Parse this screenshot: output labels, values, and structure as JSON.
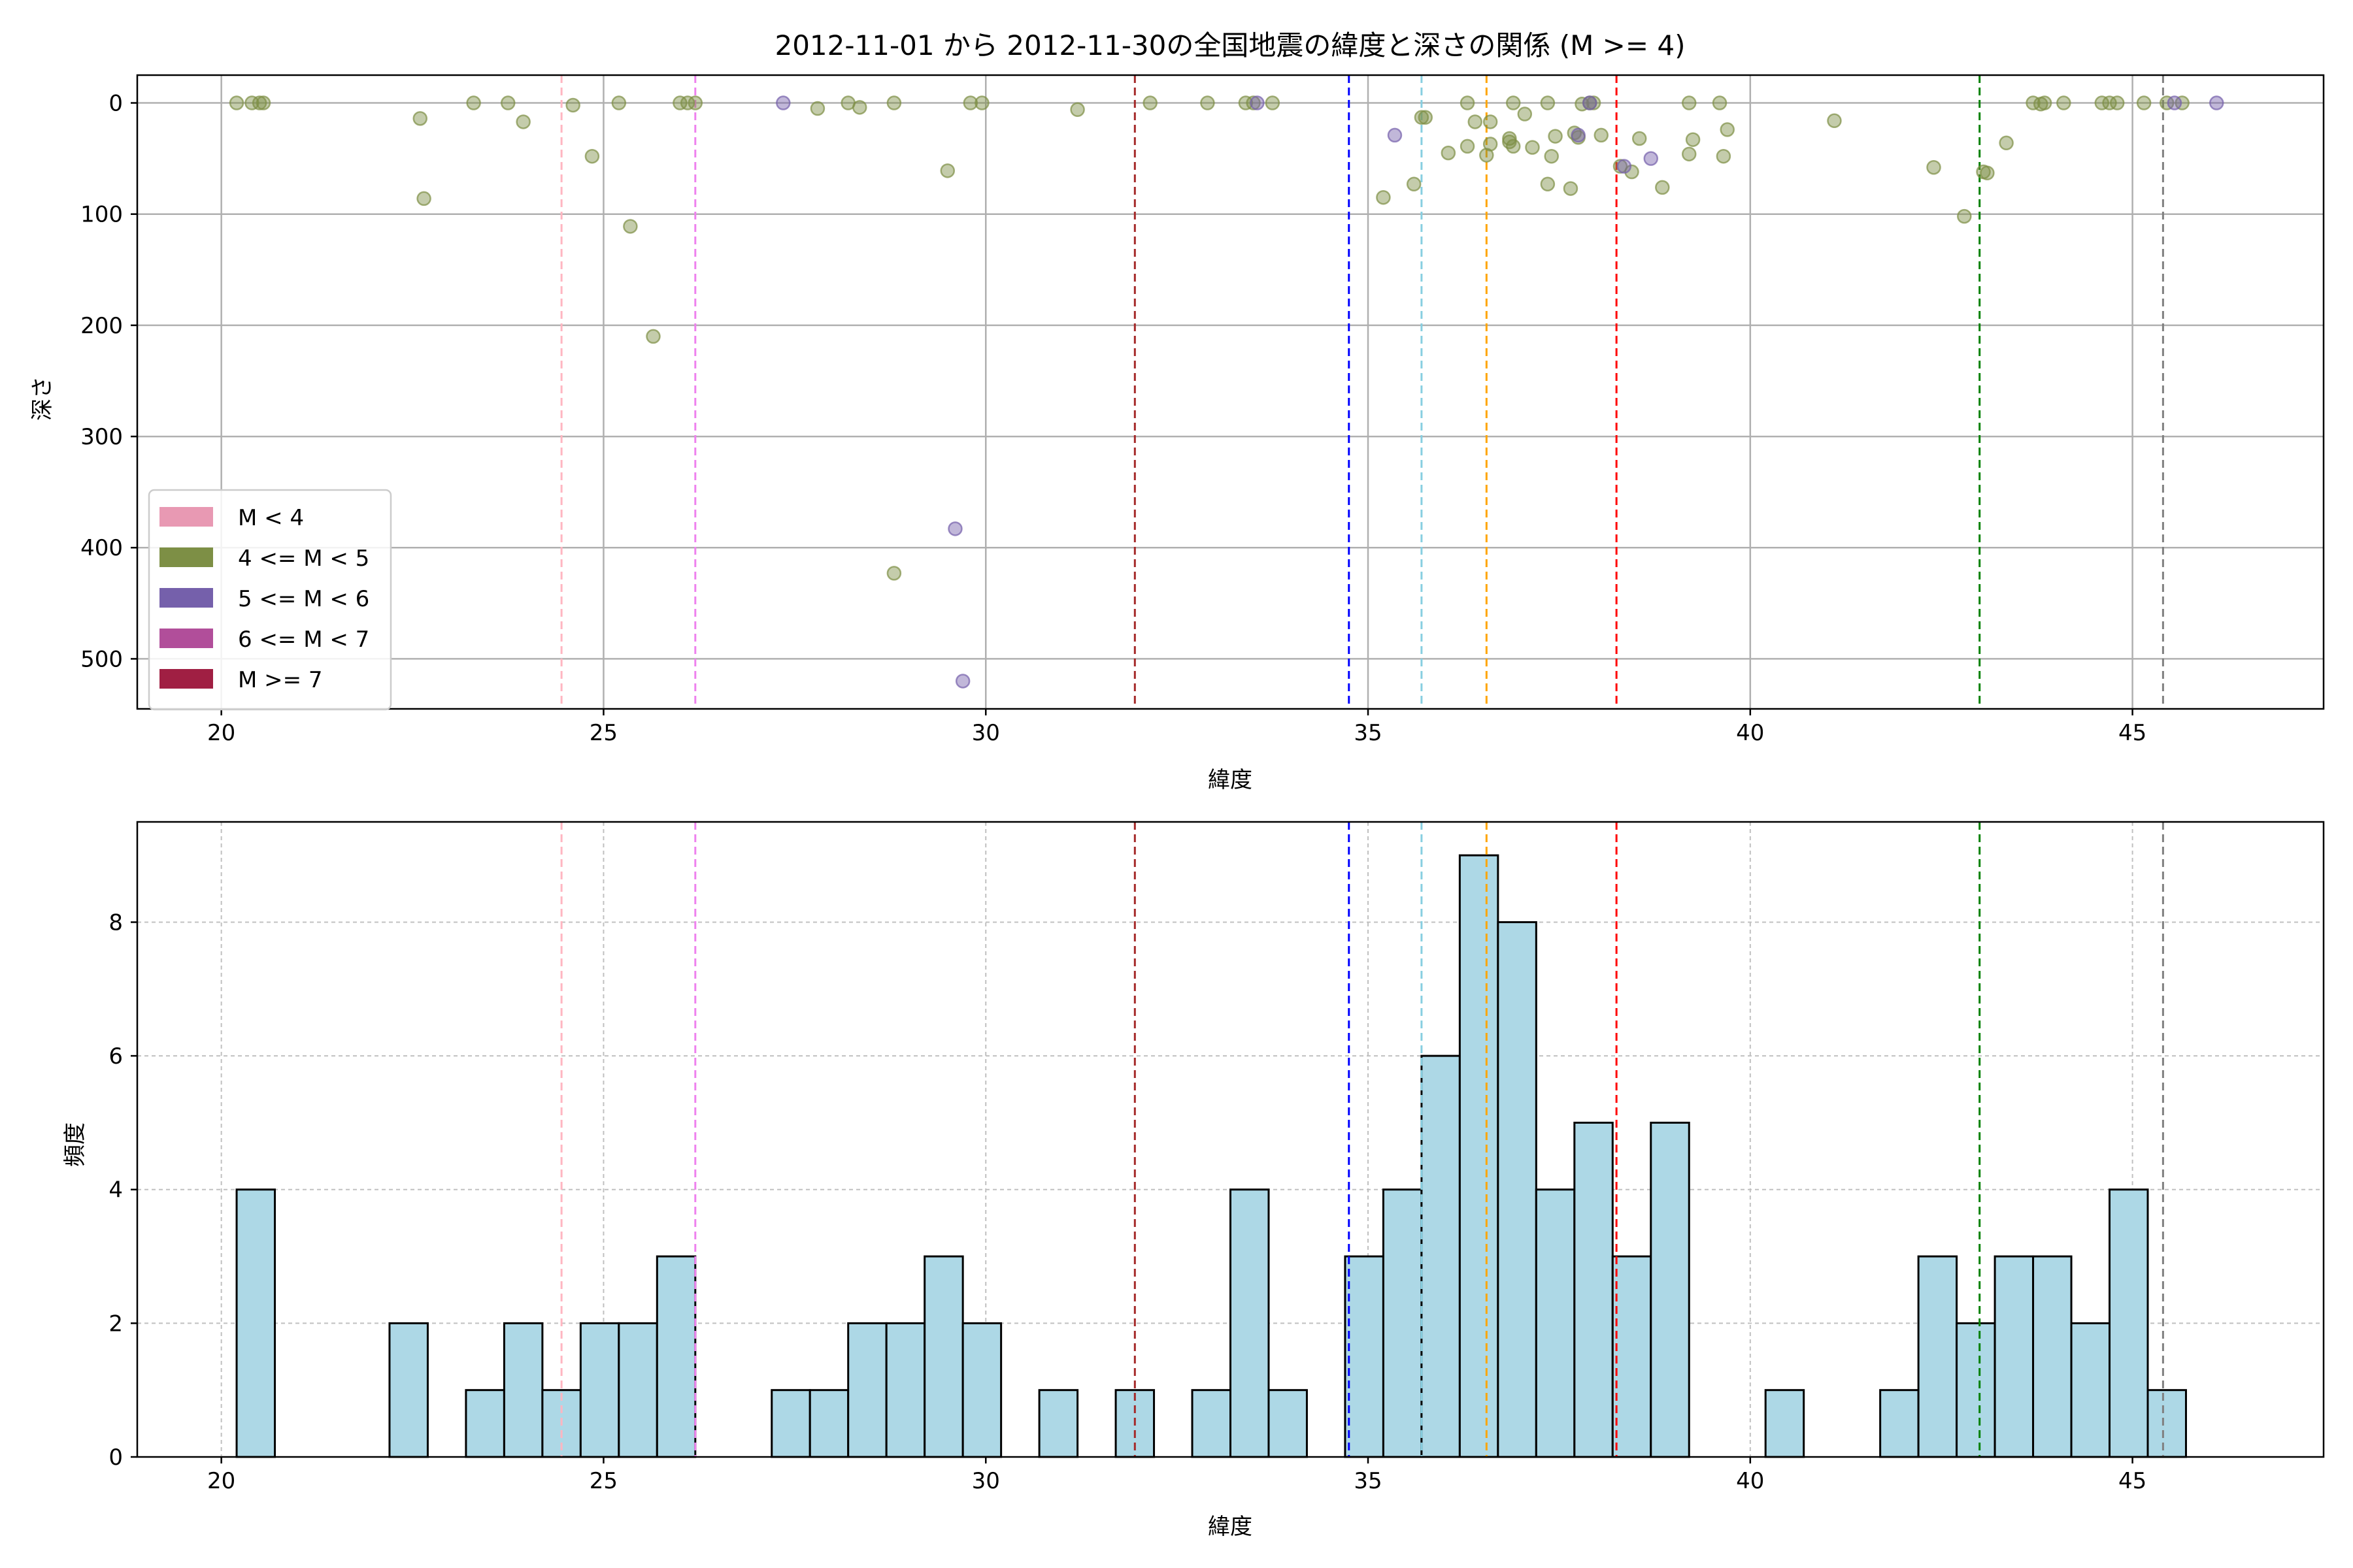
{
  "chart_title": "2012-11-01 から 2012-11-30の全国地震の緯度と深さの関係 (M >= 4)",
  "chart_data": [
    {
      "type": "scatter",
      "xlabel": "緯度",
      "ylabel": "深さ",
      "xlim": [
        18.9,
        47.5
      ],
      "ylim": [
        545,
        -25
      ],
      "y_inverted": true,
      "xticks": [
        20,
        25,
        30,
        35,
        40,
        45
      ],
      "yticks": [
        0,
        100,
        200,
        300,
        400,
        500
      ],
      "grid": true,
      "legend": {
        "position": "lower-left",
        "entries": [
          {
            "label": "M < 4",
            "color": "#e899b3"
          },
          {
            "label": "4 <= M < 5",
            "color": "#7d8f45"
          },
          {
            "label": "5 <= M < 6",
            "color": "#7560ab"
          },
          {
            "label": "6 <= M < 7",
            "color": "#b14e9a"
          },
          {
            "label": "M >= 7",
            "color": "#a01f43"
          }
        ]
      },
      "series": [
        {
          "name": "4 <= M < 5",
          "color": "#7d8f45",
          "points": [
            [
              20.2,
              0
            ],
            [
              20.4,
              0
            ],
            [
              20.5,
              0
            ],
            [
              20.55,
              0
            ],
            [
              22.6,
              14
            ],
            [
              22.65,
              86
            ],
            [
              23.3,
              0
            ],
            [
              23.75,
              0
            ],
            [
              23.95,
              17
            ],
            [
              24.6,
              2
            ],
            [
              24.85,
              48
            ],
            [
              25.2,
              0
            ],
            [
              25.35,
              111
            ],
            [
              25.65,
              210
            ],
            [
              26.0,
              0
            ],
            [
              26.1,
              0
            ],
            [
              26.2,
              0
            ],
            [
              27.8,
              5
            ],
            [
              28.2,
              0
            ],
            [
              28.35,
              4
            ],
            [
              28.8,
              0
            ],
            [
              28.8,
              423
            ],
            [
              29.5,
              61
            ],
            [
              29.8,
              0
            ],
            [
              29.95,
              0
            ],
            [
              31.2,
              6
            ],
            [
              32.15,
              0
            ],
            [
              32.9,
              0
            ],
            [
              33.4,
              0
            ],
            [
              33.5,
              0
            ],
            [
              33.75,
              0
            ],
            [
              35.2,
              85
            ],
            [
              35.6,
              73
            ],
            [
              35.7,
              13
            ],
            [
              35.75,
              13
            ],
            [
              36.05,
              45
            ],
            [
              36.3,
              0
            ],
            [
              36.3,
              39
            ],
            [
              36.4,
              17
            ],
            [
              36.55,
              47
            ],
            [
              36.6,
              37
            ],
            [
              36.6,
              17
            ],
            [
              36.85,
              32
            ],
            [
              36.85,
              35
            ],
            [
              36.9,
              0
            ],
            [
              36.9,
              39
            ],
            [
              37.05,
              10
            ],
            [
              37.15,
              40
            ],
            [
              37.35,
              0
            ],
            [
              37.35,
              73
            ],
            [
              37.4,
              48
            ],
            [
              37.45,
              30
            ],
            [
              37.65,
              77
            ],
            [
              37.7,
              27
            ],
            [
              37.75,
              31
            ],
            [
              37.8,
              1
            ],
            [
              37.9,
              0
            ],
            [
              37.95,
              0
            ],
            [
              38.05,
              29
            ],
            [
              38.3,
              57
            ],
            [
              38.45,
              62
            ],
            [
              38.55,
              32
            ],
            [
              38.85,
              76
            ],
            [
              39.2,
              46
            ],
            [
              39.2,
              0
            ],
            [
              39.25,
              33
            ],
            [
              39.6,
              0
            ],
            [
              39.65,
              48
            ],
            [
              39.7,
              24
            ],
            [
              41.1,
              16
            ],
            [
              42.4,
              58
            ],
            [
              42.8,
              102
            ],
            [
              43.05,
              62
            ],
            [
              43.1,
              63
            ],
            [
              43.35,
              36
            ],
            [
              43.7,
              0
            ],
            [
              43.8,
              1
            ],
            [
              43.85,
              0
            ],
            [
              44.1,
              0
            ],
            [
              44.6,
              0
            ],
            [
              44.7,
              0
            ],
            [
              44.8,
              0
            ],
            [
              45.15,
              0
            ],
            [
              45.45,
              0
            ],
            [
              45.65,
              0
            ]
          ]
        },
        {
          "name": "5 <= M < 6",
          "color": "#7560ab",
          "points": [
            [
              27.35,
              0
            ],
            [
              29.6,
              383
            ],
            [
              29.7,
              520
            ],
            [
              33.55,
              0
            ],
            [
              35.35,
              29
            ],
            [
              37.75,
              29
            ],
            [
              37.9,
              0
            ],
            [
              38.35,
              57
            ],
            [
              38.7,
              50
            ],
            [
              45.55,
              0
            ],
            [
              46.1,
              0
            ]
          ]
        }
      ]
    },
    {
      "type": "bar",
      "subtype": "histogram",
      "xlabel": "緯度",
      "ylabel": "頻度",
      "xlim": [
        18.9,
        47.5
      ],
      "ylim": [
        0,
        9.5
      ],
      "xticks": [
        20,
        25,
        30,
        35,
        40,
        45
      ],
      "yticks": [
        0,
        2,
        4,
        6,
        8
      ],
      "grid": true,
      "bin_start": 20.2,
      "bin_width": 0.5,
      "bar_color": "#add8e6",
      "values": [
        4,
        0,
        0,
        0,
        2,
        0,
        1,
        2,
        1,
        2,
        2,
        3,
        0,
        0,
        1,
        1,
        2,
        2,
        3,
        2,
        0,
        1,
        0,
        1,
        0,
        1,
        4,
        1,
        0,
        3,
        4,
        6,
        9,
        8,
        4,
        5,
        3,
        5,
        0,
        0,
        1,
        0,
        0,
        1,
        3,
        2,
        3,
        3,
        2,
        4,
        1
      ]
    }
  ],
  "reference_lines": [
    {
      "x": 24.45,
      "color": "#ffb6c1"
    },
    {
      "x": 26.2,
      "color": "#ee82ee"
    },
    {
      "x": 31.95,
      "color": "#a52a2a"
    },
    {
      "x": 34.75,
      "color": "#0000ff"
    },
    {
      "x": 35.7,
      "color": "#87cee0"
    },
    {
      "x": 36.55,
      "color": "#ffa500"
    },
    {
      "x": 38.25,
      "color": "#ff0000"
    },
    {
      "x": 43.0,
      "color": "#008000"
    },
    {
      "x": 45.4,
      "color": "#808080"
    }
  ]
}
